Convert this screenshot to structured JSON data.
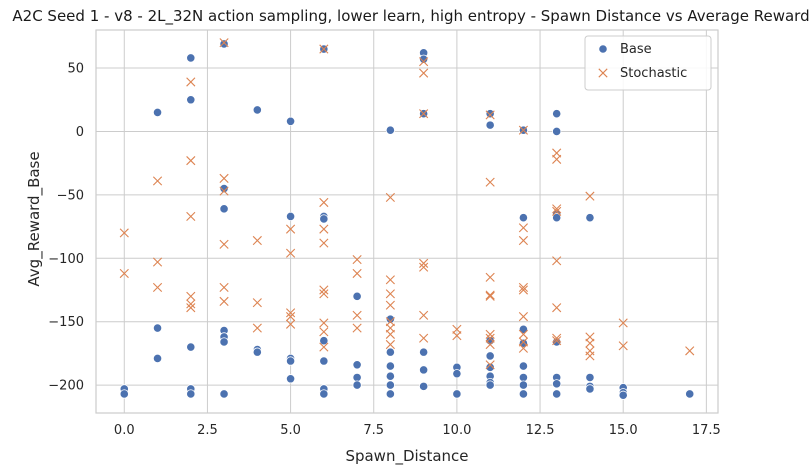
{
  "chart_data": {
    "type": "scatter",
    "title": "A2C Seed 1 - v8 - 2L_32N action sampling, lower learn, high entropy - Spawn Distance vs Average Reward",
    "xlabel": "Spawn_Distance",
    "ylabel": "Avg_Reward_Base",
    "xlim": [
      -0.85,
      17.85
    ],
    "ylim": [
      -222,
      80
    ],
    "xticks": [
      0.0,
      2.5,
      5.0,
      7.5,
      10.0,
      12.5,
      15.0,
      17.5
    ],
    "xtick_labels": [
      "0.0",
      "2.5",
      "5.0",
      "7.5",
      "10.0",
      "12.5",
      "15.0",
      "17.5"
    ],
    "yticks": [
      -200,
      -150,
      -100,
      -50,
      0,
      50
    ],
    "ytick_labels": [
      "−200",
      "−150",
      "−100",
      "−50",
      "0",
      "50"
    ],
    "grid": true,
    "legend_position": "top-right",
    "series": [
      {
        "name": "Base",
        "marker": "circle",
        "color": "#4c72b0",
        "points": [
          [
            0,
            -203
          ],
          [
            0,
            -207
          ],
          [
            1,
            15
          ],
          [
            1,
            -155
          ],
          [
            1,
            -179
          ],
          [
            2,
            58
          ],
          [
            2,
            25
          ],
          [
            2,
            -170
          ],
          [
            2,
            -203
          ],
          [
            2,
            -207
          ],
          [
            3,
            69
          ],
          [
            3,
            -45
          ],
          [
            3,
            -61
          ],
          [
            3,
            -157
          ],
          [
            3,
            -162
          ],
          [
            3,
            -166
          ],
          [
            3,
            -207
          ],
          [
            4,
            17
          ],
          [
            4,
            -172
          ],
          [
            4,
            -174
          ],
          [
            5,
            8
          ],
          [
            5,
            -67
          ],
          [
            5,
            -179
          ],
          [
            5,
            -181
          ],
          [
            5,
            -195
          ],
          [
            6,
            65
          ],
          [
            6,
            -67
          ],
          [
            6,
            -69
          ],
          [
            6,
            -165
          ],
          [
            6,
            -181
          ],
          [
            6,
            -203
          ],
          [
            6,
            -207
          ],
          [
            7,
            -130
          ],
          [
            7,
            -184
          ],
          [
            7,
            -194
          ],
          [
            7,
            -200
          ],
          [
            8,
            1
          ],
          [
            8,
            -148
          ],
          [
            8,
            -174
          ],
          [
            8,
            -185
          ],
          [
            8,
            -193
          ],
          [
            8,
            -200
          ],
          [
            8,
            -207
          ],
          [
            9,
            62
          ],
          [
            9,
            57
          ],
          [
            9,
            14
          ],
          [
            9,
            -174
          ],
          [
            9,
            -188
          ],
          [
            9,
            -201
          ],
          [
            10,
            -186
          ],
          [
            10,
            -191
          ],
          [
            10,
            -207
          ],
          [
            11,
            14
          ],
          [
            11,
            5
          ],
          [
            11,
            -165
          ],
          [
            11,
            -177
          ],
          [
            11,
            -186
          ],
          [
            11,
            -193
          ],
          [
            11,
            -198
          ],
          [
            11,
            -200
          ],
          [
            12,
            1
          ],
          [
            12,
            -68
          ],
          [
            12,
            -156
          ],
          [
            12,
            -167
          ],
          [
            12,
            -185
          ],
          [
            12,
            -194
          ],
          [
            12,
            -200
          ],
          [
            12,
            -207
          ],
          [
            13,
            14
          ],
          [
            13,
            0
          ],
          [
            13,
            -65
          ],
          [
            13,
            -68
          ],
          [
            13,
            -166
          ],
          [
            13,
            -194
          ],
          [
            13,
            -199
          ],
          [
            13,
            -207
          ],
          [
            14,
            -68
          ],
          [
            14,
            -194
          ],
          [
            14,
            -201
          ],
          [
            14,
            -203
          ],
          [
            15,
            -202
          ],
          [
            15,
            -206
          ],
          [
            15,
            -208
          ],
          [
            17,
            -207
          ]
        ]
      },
      {
        "name": "Stochastic",
        "marker": "x",
        "color": "#dd8452",
        "points": [
          [
            0,
            -80
          ],
          [
            0,
            -112
          ],
          [
            1,
            -39
          ],
          [
            1,
            -103
          ],
          [
            1,
            -123
          ],
          [
            2,
            39
          ],
          [
            2,
            -23
          ],
          [
            2,
            -67
          ],
          [
            2,
            -130
          ],
          [
            2,
            -136
          ],
          [
            2,
            -139
          ],
          [
            3,
            70
          ],
          [
            3,
            -37
          ],
          [
            3,
            -47
          ],
          [
            3,
            -89
          ],
          [
            3,
            -123
          ],
          [
            3,
            -134
          ],
          [
            4,
            -86
          ],
          [
            4,
            -135
          ],
          [
            4,
            -155
          ],
          [
            5,
            -77
          ],
          [
            5,
            -96
          ],
          [
            5,
            -143
          ],
          [
            5,
            -146
          ],
          [
            5,
            -152
          ],
          [
            6,
            65
          ],
          [
            6,
            -56
          ],
          [
            6,
            -77
          ],
          [
            6,
            -88
          ],
          [
            6,
            -125
          ],
          [
            6,
            -128
          ],
          [
            6,
            -151
          ],
          [
            6,
            -158
          ],
          [
            6,
            -170
          ],
          [
            7,
            -101
          ],
          [
            7,
            -112
          ],
          [
            7,
            -145
          ],
          [
            7,
            -155
          ],
          [
            8,
            -52
          ],
          [
            8,
            -117
          ],
          [
            8,
            -128
          ],
          [
            8,
            -137
          ],
          [
            8,
            -150
          ],
          [
            8,
            -155
          ],
          [
            8,
            -160
          ],
          [
            8,
            -168
          ],
          [
            9,
            55
          ],
          [
            9,
            46
          ],
          [
            9,
            14
          ],
          [
            9,
            -104
          ],
          [
            9,
            -107
          ],
          [
            9,
            -145
          ],
          [
            9,
            -163
          ],
          [
            10,
            -156
          ],
          [
            10,
            -161
          ],
          [
            11,
            13
          ],
          [
            11,
            -40
          ],
          [
            11,
            -115
          ],
          [
            11,
            -129
          ],
          [
            11,
            -130
          ],
          [
            11,
            -160
          ],
          [
            11,
            -163
          ],
          [
            11,
            -168
          ],
          [
            11,
            -184
          ],
          [
            12,
            1
          ],
          [
            12,
            -76
          ],
          [
            12,
            -86
          ],
          [
            12,
            -123
          ],
          [
            12,
            -125
          ],
          [
            12,
            -146
          ],
          [
            12,
            -160
          ],
          [
            12,
            -166
          ],
          [
            12,
            -171
          ],
          [
            13,
            -17
          ],
          [
            13,
            -22
          ],
          [
            13,
            -61
          ],
          [
            13,
            -63
          ],
          [
            13,
            -102
          ],
          [
            13,
            -139
          ],
          [
            13,
            -163
          ],
          [
            13,
            -165
          ],
          [
            14,
            -51
          ],
          [
            14,
            -162
          ],
          [
            14,
            -167
          ],
          [
            14,
            -173
          ],
          [
            14,
            -177
          ],
          [
            15,
            -151
          ],
          [
            15,
            -169
          ],
          [
            17,
            -173
          ]
        ]
      }
    ]
  }
}
